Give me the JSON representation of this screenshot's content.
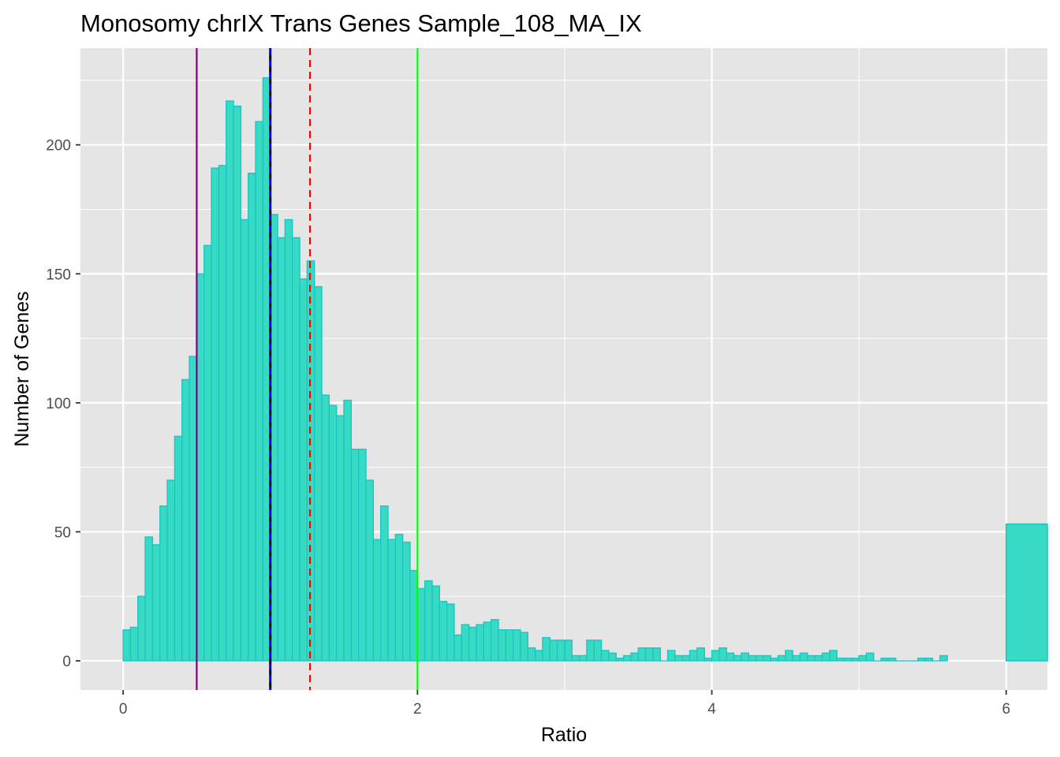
{
  "chart_data": {
    "type": "bar",
    "title": "Monosomy chrIX Trans Genes Sample_108_MA_IX",
    "xlabel": "Ratio",
    "ylabel": "Number of Genes",
    "xlim": [
      -0.29,
      6.28
    ],
    "ylim": [
      -11.3,
      237.5
    ],
    "grid": true,
    "x_ticks": [
      0,
      2,
      4,
      6
    ],
    "y_ticks": [
      0,
      50,
      100,
      150,
      200
    ],
    "bin_width": 0.05,
    "bins_start": 0,
    "values": [
      12,
      13,
      25,
      48,
      45,
      60,
      70,
      87,
      109,
      118,
      150,
      161,
      191,
      192,
      217,
      215,
      171,
      189,
      209,
      226,
      173,
      164,
      171,
      164,
      148,
      155,
      145,
      103,
      99,
      95,
      101,
      82,
      82,
      70,
      47,
      60,
      47,
      49,
      46,
      35,
      28,
      31,
      29,
      23,
      22,
      10,
      14,
      13,
      14,
      15,
      16,
      12,
      12,
      12,
      11,
      5,
      4,
      9,
      8,
      8,
      8,
      2,
      2,
      8,
      8,
      4,
      3,
      1,
      2,
      3,
      5,
      5,
      5,
      0,
      4,
      2,
      2,
      4,
      5,
      1,
      4,
      5,
      3,
      2,
      3,
      2,
      2,
      2,
      1,
      2,
      4,
      2,
      3,
      2,
      2,
      3,
      4,
      1,
      1,
      1,
      2,
      3,
      0,
      1,
      1,
      0,
      0,
      0,
      1,
      1,
      0,
      2
    ],
    "overflow_bar": {
      "x_start": 6.0,
      "x_end": 6.28,
      "value": 53
    },
    "bar_fill": "#37DBC4",
    "bar_stroke": "#1FC4C4",
    "reference_lines": [
      {
        "x": 0.5,
        "color": "#800080",
        "style": "solid"
      },
      {
        "x": 1.0,
        "color": "#000000",
        "style": "solid"
      },
      {
        "x": 1.0,
        "color": "#0000FF",
        "style": "dashed"
      },
      {
        "x": 1.27,
        "color": "#FF0000",
        "style": "dashed"
      },
      {
        "x": 2.0,
        "color": "#00FF00",
        "style": "solid"
      }
    ],
    "panel_background": "#E5E5E5",
    "grid_color": "#FFFFFF"
  }
}
